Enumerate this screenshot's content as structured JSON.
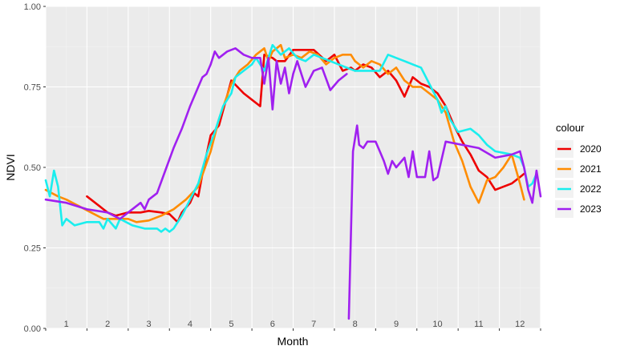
{
  "chart_data": {
    "type": "line",
    "xlabel": "Month",
    "ylabel": "NDVI",
    "xlim": [
      0.5,
      12.5
    ],
    "ylim": [
      0,
      1
    ],
    "ytick_values": [
      0,
      0.25,
      0.5,
      0.75,
      1
    ],
    "ytick_labels": [
      "0.00",
      "0.25",
      "0.50",
      "0.75",
      "1.00"
    ],
    "month_labels": [
      "1",
      "2",
      "3",
      "4",
      "5",
      "6",
      "7",
      "8",
      "9",
      "10",
      "11",
      "12"
    ],
    "grid": true,
    "legend": {
      "title": "colour",
      "position": "right"
    },
    "series": [
      {
        "name": "2020",
        "color": "#ee0000",
        "points": [
          [
            1.5,
            0.41
          ],
          [
            1.8,
            0.38
          ],
          [
            2.0,
            0.36
          ],
          [
            2.2,
            0.35
          ],
          [
            2.5,
            0.36
          ],
          [
            2.8,
            0.36
          ],
          [
            3.0,
            0.365
          ],
          [
            3.3,
            0.36
          ],
          [
            3.5,
            0.355
          ],
          [
            3.7,
            0.33
          ],
          [
            3.8,
            0.36
          ],
          [
            4.0,
            0.39
          ],
          [
            4.1,
            0.42
          ],
          [
            4.2,
            0.41
          ],
          [
            4.3,
            0.48
          ],
          [
            4.5,
            0.6
          ],
          [
            4.7,
            0.63
          ],
          [
            5.0,
            0.77
          ],
          [
            5.3,
            0.73
          ],
          [
            5.7,
            0.69
          ],
          [
            5.8,
            0.85
          ],
          [
            6.0,
            0.84
          ],
          [
            6.1,
            0.83
          ],
          [
            6.3,
            0.83
          ],
          [
            6.5,
            0.865
          ],
          [
            7.0,
            0.865
          ],
          [
            7.3,
            0.83
          ],
          [
            7.5,
            0.85
          ],
          [
            7.7,
            0.8
          ],
          [
            7.9,
            0.81
          ],
          [
            8.0,
            0.8
          ],
          [
            8.2,
            0.82
          ],
          [
            8.4,
            0.81
          ],
          [
            8.6,
            0.78
          ],
          [
            8.8,
            0.8
          ],
          [
            9.0,
            0.77
          ],
          [
            9.2,
            0.72
          ],
          [
            9.4,
            0.78
          ],
          [
            9.6,
            0.76
          ],
          [
            9.8,
            0.75
          ],
          [
            10.0,
            0.73
          ],
          [
            10.2,
            0.69
          ],
          [
            10.4,
            0.63
          ],
          [
            10.6,
            0.58
          ],
          [
            10.8,
            0.54
          ],
          [
            11.0,
            0.49
          ],
          [
            11.2,
            0.47
          ],
          [
            11.4,
            0.43
          ],
          [
            11.6,
            0.44
          ],
          [
            11.8,
            0.45
          ],
          [
            12.0,
            0.47
          ],
          [
            12.1,
            0.48
          ]
        ]
      },
      {
        "name": "2021",
        "color": "#ff8c00",
        "points": [
          [
            0.5,
            0.43
          ],
          [
            0.8,
            0.41
          ],
          [
            1.0,
            0.4
          ],
          [
            1.3,
            0.38
          ],
          [
            1.6,
            0.36
          ],
          [
            1.9,
            0.34
          ],
          [
            2.2,
            0.34
          ],
          [
            2.5,
            0.34
          ],
          [
            2.7,
            0.33
          ],
          [
            3.0,
            0.335
          ],
          [
            3.3,
            0.35
          ],
          [
            3.6,
            0.37
          ],
          [
            3.9,
            0.4
          ],
          [
            4.2,
            0.44
          ],
          [
            4.5,
            0.55
          ],
          [
            4.7,
            0.65
          ],
          [
            5.0,
            0.76
          ],
          [
            5.2,
            0.8
          ],
          [
            5.4,
            0.82
          ],
          [
            5.6,
            0.85
          ],
          [
            5.8,
            0.87
          ],
          [
            5.9,
            0.83
          ],
          [
            6.0,
            0.86
          ],
          [
            6.2,
            0.88
          ],
          [
            6.3,
            0.84
          ],
          [
            6.5,
            0.85
          ],
          [
            6.7,
            0.84
          ],
          [
            6.9,
            0.86
          ],
          [
            7.1,
            0.85
          ],
          [
            7.3,
            0.82
          ],
          [
            7.5,
            0.84
          ],
          [
            7.7,
            0.85
          ],
          [
            7.9,
            0.85
          ],
          [
            8.0,
            0.83
          ],
          [
            8.2,
            0.81
          ],
          [
            8.4,
            0.83
          ],
          [
            8.6,
            0.82
          ],
          [
            8.8,
            0.79
          ],
          [
            9.0,
            0.81
          ],
          [
            9.2,
            0.77
          ],
          [
            9.4,
            0.75
          ],
          [
            9.6,
            0.75
          ],
          [
            9.8,
            0.73
          ],
          [
            10.0,
            0.71
          ],
          [
            10.2,
            0.67
          ],
          [
            10.4,
            0.58
          ],
          [
            10.6,
            0.52
          ],
          [
            10.8,
            0.44
          ],
          [
            11.0,
            0.39
          ],
          [
            11.2,
            0.46
          ],
          [
            11.4,
            0.47
          ],
          [
            11.6,
            0.5
          ],
          [
            11.8,
            0.54
          ],
          [
            12.0,
            0.45
          ],
          [
            12.1,
            0.4
          ]
        ]
      },
      {
        "name": "2022",
        "color": "#1aeeee",
        "points": [
          [
            0.5,
            0.46
          ],
          [
            0.6,
            0.41
          ],
          [
            0.7,
            0.49
          ],
          [
            0.8,
            0.44
          ],
          [
            0.9,
            0.32
          ],
          [
            1.0,
            0.34
          ],
          [
            1.2,
            0.32
          ],
          [
            1.5,
            0.33
          ],
          [
            1.8,
            0.33
          ],
          [
            1.9,
            0.31
          ],
          [
            2.0,
            0.34
          ],
          [
            2.2,
            0.31
          ],
          [
            2.3,
            0.34
          ],
          [
            2.6,
            0.32
          ],
          [
            2.9,
            0.31
          ],
          [
            3.2,
            0.31
          ],
          [
            3.3,
            0.3
          ],
          [
            3.4,
            0.31
          ],
          [
            3.5,
            0.3
          ],
          [
            3.6,
            0.31
          ],
          [
            3.8,
            0.35
          ],
          [
            4.0,
            0.4
          ],
          [
            4.2,
            0.45
          ],
          [
            4.4,
            0.54
          ],
          [
            4.6,
            0.61
          ],
          [
            4.8,
            0.69
          ],
          [
            5.0,
            0.73
          ],
          [
            5.1,
            0.78
          ],
          [
            5.3,
            0.8
          ],
          [
            5.5,
            0.82
          ],
          [
            5.6,
            0.84
          ],
          [
            5.8,
            0.8
          ],
          [
            6.0,
            0.88
          ],
          [
            6.2,
            0.85
          ],
          [
            6.4,
            0.87
          ],
          [
            6.6,
            0.84
          ],
          [
            6.8,
            0.83
          ],
          [
            7.0,
            0.85
          ],
          [
            7.2,
            0.84
          ],
          [
            7.4,
            0.83
          ],
          [
            7.6,
            0.82
          ],
          [
            7.8,
            0.81
          ],
          [
            8.0,
            0.8
          ],
          [
            8.2,
            0.8
          ],
          [
            8.4,
            0.8
          ],
          [
            8.6,
            0.8
          ],
          [
            8.8,
            0.85
          ],
          [
            9.0,
            0.84
          ],
          [
            9.2,
            0.83
          ],
          [
            9.4,
            0.82
          ],
          [
            9.6,
            0.81
          ],
          [
            9.8,
            0.76
          ],
          [
            10.0,
            0.71
          ],
          [
            10.1,
            0.67
          ],
          [
            10.2,
            0.69
          ],
          [
            10.3,
            0.65
          ],
          [
            10.5,
            0.61
          ],
          [
            10.8,
            0.62
          ],
          [
            11.0,
            0.6
          ],
          [
            11.2,
            0.57
          ],
          [
            11.4,
            0.55
          ],
          [
            11.8,
            0.54
          ],
          [
            12.0,
            0.53
          ],
          [
            12.1,
            0.5
          ],
          [
            12.2,
            0.44
          ],
          [
            12.3,
            0.45
          ],
          [
            12.4,
            0.48
          ]
        ]
      },
      {
        "name": "2023",
        "color": "#a020f0",
        "points": [
          [
            0.5,
            0.4
          ],
          [
            1.0,
            0.39
          ],
          [
            1.5,
            0.37
          ],
          [
            2.0,
            0.36
          ],
          [
            2.3,
            0.34
          ],
          [
            2.5,
            0.36
          ],
          [
            2.8,
            0.39
          ],
          [
            2.9,
            0.37
          ],
          [
            3.0,
            0.4
          ],
          [
            3.2,
            0.42
          ],
          [
            3.4,
            0.49
          ],
          [
            3.6,
            0.56
          ],
          [
            3.8,
            0.62
          ],
          [
            4.0,
            0.69
          ],
          [
            4.2,
            0.75
          ],
          [
            4.3,
            0.78
          ],
          [
            4.4,
            0.79
          ],
          [
            4.5,
            0.82
          ],
          [
            4.6,
            0.86
          ],
          [
            4.7,
            0.84
          ],
          [
            4.9,
            0.86
          ],
          [
            5.1,
            0.87
          ],
          [
            5.3,
            0.85
          ],
          [
            5.5,
            0.84
          ],
          [
            5.7,
            0.84
          ],
          [
            5.8,
            0.76
          ],
          [
            5.9,
            0.84
          ],
          [
            6.0,
            0.68
          ],
          [
            6.1,
            0.83
          ],
          [
            6.2,
            0.76
          ],
          [
            6.3,
            0.81
          ],
          [
            6.4,
            0.73
          ],
          [
            6.5,
            0.79
          ],
          [
            6.6,
            0.83
          ],
          [
            6.8,
            0.75
          ],
          [
            7.0,
            0.8
          ],
          [
            7.2,
            0.81
          ],
          [
            7.4,
            0.74
          ],
          [
            7.6,
            0.77
          ],
          [
            7.8,
            0.79
          ],
          [
            7.9,
            null
          ],
          [
            7.85,
            0.03
          ],
          [
            7.95,
            0.55
          ],
          [
            8.05,
            0.63
          ],
          [
            8.1,
            0.57
          ],
          [
            8.2,
            0.56
          ],
          [
            8.3,
            0.58
          ],
          [
            8.5,
            0.58
          ],
          [
            8.6,
            0.55
          ],
          [
            8.7,
            0.52
          ],
          [
            8.8,
            0.48
          ],
          [
            8.9,
            0.52
          ],
          [
            9.0,
            0.5
          ],
          [
            9.2,
            0.53
          ],
          [
            9.3,
            0.47
          ],
          [
            9.4,
            0.55
          ],
          [
            9.5,
            0.47
          ],
          [
            9.7,
            0.47
          ],
          [
            9.8,
            0.55
          ],
          [
            9.9,
            0.46
          ],
          [
            10.0,
            0.47
          ],
          [
            10.2,
            0.58
          ],
          [
            10.6,
            0.57
          ],
          [
            11.0,
            0.56
          ],
          [
            11.4,
            0.53
          ],
          [
            11.8,
            0.54
          ],
          [
            12.0,
            0.55
          ],
          [
            12.1,
            0.5
          ],
          [
            12.2,
            0.43
          ],
          [
            12.3,
            0.39
          ],
          [
            12.4,
            0.49
          ],
          [
            12.5,
            0.41
          ]
        ]
      }
    ]
  }
}
